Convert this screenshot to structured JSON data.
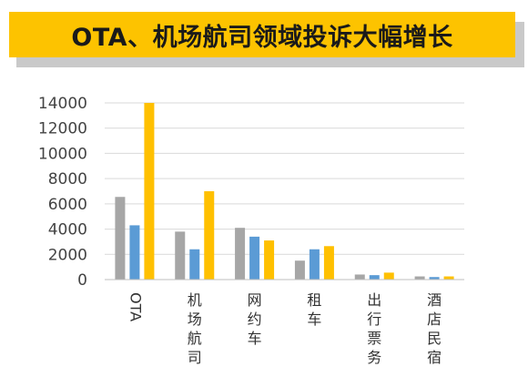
{
  "colors": {
    "banner": "#fdc300",
    "banner_shadow": "#c9c9c9",
    "gridline": "#d9d9d9",
    "axis": "#bfbfbf"
  },
  "chart_data": {
    "type": "bar",
    "title": "OTA、机场航司领域投诉大幅增长",
    "categories": [
      "OTA",
      "机场航司",
      "网约车",
      "租车",
      "出行票务",
      "酒店民宿"
    ],
    "series": [
      {
        "color": "#a6a6a6",
        "values": [
          6550,
          3800,
          4100,
          1500,
          400,
          250
        ]
      },
      {
        "color": "#5b9bd5",
        "values": [
          4300,
          2400,
          3400,
          2400,
          350,
          200
        ]
      },
      {
        "color": "#ffc000",
        "values": [
          14000,
          7000,
          3100,
          2650,
          550,
          250
        ]
      }
    ],
    "ylim": [
      0,
      14000
    ],
    "yticks": [
      0,
      2000,
      4000,
      6000,
      8000,
      10000,
      12000,
      14000
    ],
    "xlabel": "",
    "ylabel": "",
    "grid": true,
    "legend": "none"
  }
}
